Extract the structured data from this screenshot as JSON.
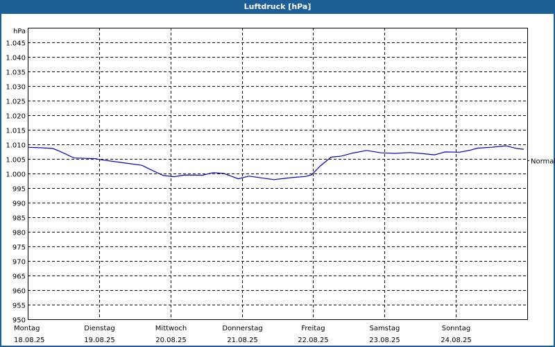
{
  "title": "Luftdruck [hPa]",
  "chart_data": {
    "type": "line",
    "title": "Luftdruck [hPa]",
    "xlabel": "",
    "ylabel": "hPa",
    "ylim": [
      950,
      1050
    ],
    "yticks": [
      "950",
      "955",
      "960",
      "965",
      "970",
      "975",
      "980",
      "985",
      "990",
      "995",
      "1.000",
      "1.005",
      "1.010",
      "1.015",
      "1.020",
      "1.025",
      "1.030",
      "1.035",
      "1.040",
      "1.045"
    ],
    "x_categories": [
      {
        "day": "Montag",
        "date": "18.08.25"
      },
      {
        "day": "Dienstag",
        "date": "19.08.25"
      },
      {
        "day": "Mittwoch",
        "date": "20.08.25"
      },
      {
        "day": "Donnerstag",
        "date": "21.08.25"
      },
      {
        "day": "Freitag",
        "date": "22.08.25"
      },
      {
        "day": "Samstag",
        "date": "23.08.25"
      },
      {
        "day": "Sonntag",
        "date": "24.08.25"
      }
    ],
    "reference_line": {
      "label": "Normal",
      "value": 1005
    },
    "grid": true,
    "series": [
      {
        "name": "Luftdruck",
        "color": "#0000c0",
        "x_day": [
          0.0,
          0.2,
          0.35,
          0.45,
          0.65,
          0.95,
          1.0,
          1.3,
          1.6,
          1.75,
          1.9,
          2.05,
          2.2,
          2.45,
          2.6,
          2.75,
          2.95,
          3.1,
          3.3,
          3.45,
          3.7,
          3.9,
          3.98,
          4.1,
          4.25,
          4.4,
          4.55,
          4.75,
          4.95,
          5.15,
          5.35,
          5.5,
          5.7,
          5.85,
          6.05,
          6.2,
          6.3,
          6.5,
          6.7,
          6.85,
          6.95
        ],
        "values": [
          1009.0,
          1008.8,
          1008.6,
          1007.6,
          1005.3,
          1005.1,
          1004.8,
          1003.8,
          1002.8,
          1001.0,
          999.3,
          998.9,
          999.5,
          999.4,
          1000.3,
          1000.0,
          998.2,
          999.1,
          998.4,
          997.9,
          998.6,
          999.0,
          999.6,
          1002.6,
          1005.6,
          1006.0,
          1007.0,
          1007.9,
          1007.1,
          1006.9,
          1007.2,
          1006.9,
          1006.4,
          1007.4,
          1007.3,
          1008.0,
          1008.7,
          1009.0,
          1009.5,
          1008.6,
          1008.3
        ]
      }
    ]
  },
  "axis": {
    "y_unit": "hPa",
    "normal_label": "Normal"
  }
}
